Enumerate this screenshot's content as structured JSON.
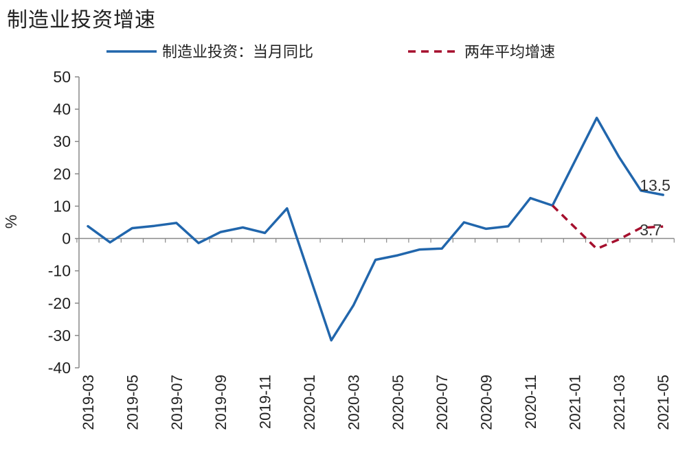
{
  "chart_data": {
    "type": "line",
    "title": "制造业投资增速",
    "ylabel": "%",
    "ylim": [
      -40,
      50
    ],
    "yticks": [
      50,
      40,
      30,
      20,
      10,
      0,
      -10,
      -20,
      -30,
      -40
    ],
    "x": [
      "2019-03",
      "2019-04",
      "2019-05",
      "2019-06",
      "2019-07",
      "2019-08",
      "2019-09",
      "2019-10",
      "2019-11",
      "2019-12",
      "2020-01",
      "2020-02",
      "2020-03",
      "2020-04",
      "2020-05",
      "2020-06",
      "2020-07",
      "2020-08",
      "2020-09",
      "2020-10",
      "2020-11",
      "2020-12",
      "2021-01",
      "2021-02",
      "2021-03",
      "2021-04",
      "2021-05"
    ],
    "xtick_labels": [
      "2019-03",
      "2019-05",
      "2019-07",
      "2019-09",
      "2019-11",
      "2020-01",
      "2020-03",
      "2020-05",
      "2020-07",
      "2020-09",
      "2020-11",
      "2021-01",
      "2021-03",
      "2021-05"
    ],
    "legend_position": "top",
    "series": [
      {
        "name": "制造业投资：当月同比",
        "color": "#2166ac",
        "style": "solid",
        "values": [
          3.8,
          -1.2,
          3.2,
          3.9,
          4.8,
          -1.4,
          2.0,
          3.4,
          1.7,
          9.3,
          null,
          -31.5,
          -20.7,
          -6.6,
          -5.2,
          -3.4,
          -3.1,
          5.0,
          3.0,
          3.8,
          12.5,
          10.2,
          null,
          37.3,
          25.3,
          14.8,
          13.5
        ],
        "end_label": "13.5"
      },
      {
        "name": "两年平均增速",
        "color": "#a50f2d",
        "style": "dashed",
        "values": [
          null,
          null,
          null,
          null,
          null,
          null,
          null,
          null,
          null,
          null,
          null,
          null,
          null,
          null,
          null,
          null,
          null,
          null,
          null,
          null,
          null,
          10.2,
          null,
          -3.2,
          -0.3,
          3.3,
          3.7
        ],
        "end_label": "3.7"
      }
    ]
  }
}
